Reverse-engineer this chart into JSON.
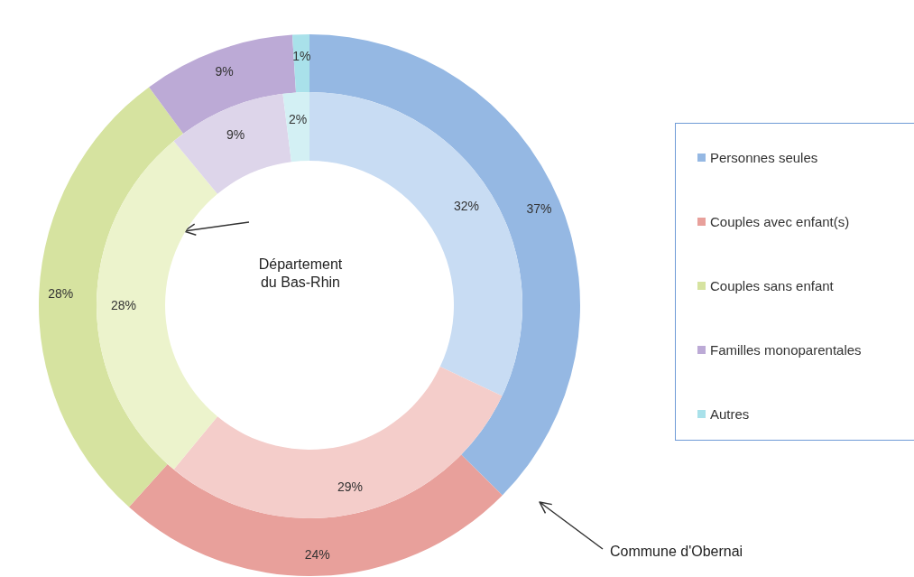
{
  "chart_data": {
    "type": "donut",
    "categories": [
      "Personnes seules",
      "Couples avec enfant(s)",
      "Couples sans enfant",
      "Familles monoparentales",
      "Autres"
    ],
    "series": [
      {
        "name": "Commune d'Obernai",
        "values": [
          37,
          24,
          28,
          9,
          1
        ],
        "value_labels": [
          "37%",
          "24%",
          "28%",
          "9%",
          "1%"
        ],
        "colors": [
          "#95b8e3",
          "#e8a09b",
          "#d6e3a0",
          "#bcaad6",
          "#a9e1ea"
        ]
      },
      {
        "name": "Département du Bas-Rhin",
        "values": [
          32,
          29,
          28,
          9,
          2
        ],
        "value_labels": [
          "32%",
          "29%",
          "28%",
          "9%",
          "2%"
        ],
        "colors": [
          "#c8dcf3",
          "#f4cdca",
          "#ecf3cc",
          "#ddd5ea",
          "#d3f0f4"
        ]
      }
    ],
    "legend": "right"
  }
}
